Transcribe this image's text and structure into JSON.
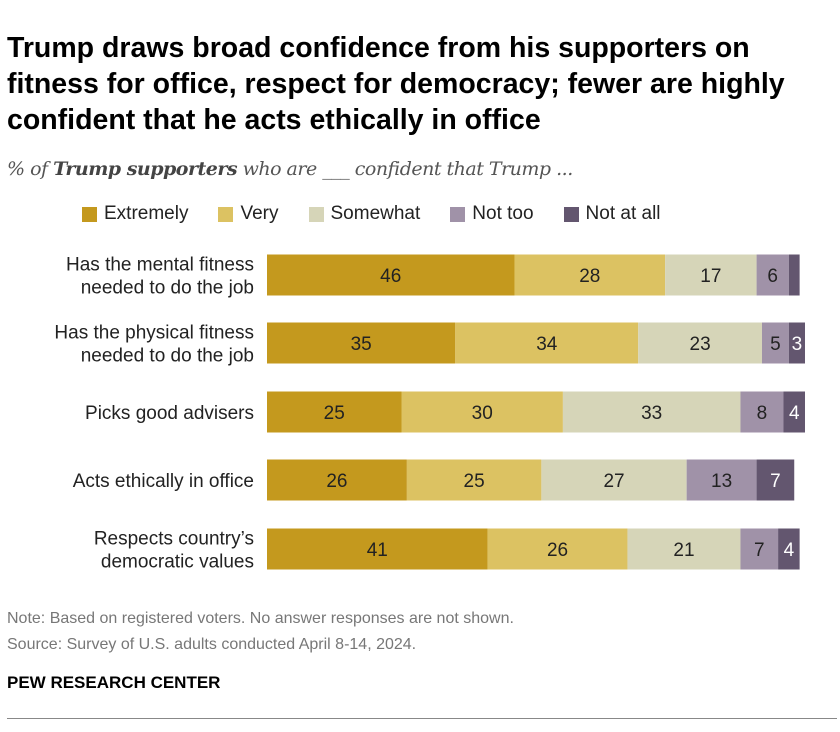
{
  "title": "Trump draws broad confidence from his supporters on fitness for office, respect for democracy; fewer are highly confident that he acts ethically in office",
  "subtitle": {
    "prefix": "% of ",
    "bold": "Trump supporters",
    "suffix": " who are ___ confident that Trump ..."
  },
  "note": "Note: Based on registered voters. No answer responses are not shown.",
  "source": "Source: Survey of U.S. adults conducted April 8-14, 2024.",
  "brand": "PEW RESEARCH CENTER",
  "chart_data": {
    "type": "bar",
    "orientation": "horizontal",
    "stacked": true,
    "categories": [
      "Has the mental fitness needed to do the job",
      "Has the physical fitness needed to do the job",
      "Picks good advisers",
      "Acts ethically in office",
      "Respects country’s democratic values"
    ],
    "category_lines": [
      [
        "Has the mental fitness",
        "needed to do the job"
      ],
      [
        "Has the physical fitness",
        "needed to do the job"
      ],
      [
        "Picks good advisers"
      ],
      [
        "Acts ethically in office"
      ],
      [
        "Respects country’s",
        "democratic values"
      ]
    ],
    "series": [
      {
        "name": "Extremely",
        "color": "#C4991E",
        "values": [
          46,
          35,
          25,
          26,
          41
        ]
      },
      {
        "name": "Very",
        "color": "#DCC262",
        "values": [
          28,
          34,
          30,
          25,
          26
        ]
      },
      {
        "name": "Somewhat",
        "color": "#D6D5B8",
        "values": [
          17,
          23,
          33,
          27,
          21
        ]
      },
      {
        "name": "Not too",
        "color": "#A092A8",
        "values": [
          6,
          5,
          8,
          13,
          7
        ]
      },
      {
        "name": "Not at all",
        "color": "#63566F",
        "values": [
          2,
          3,
          4,
          7,
          4
        ]
      }
    ],
    "labels": [
      [
        "46",
        "28",
        "17",
        "6",
        ""
      ],
      [
        "35",
        "34",
        "23",
        "5",
        "3"
      ],
      [
        "25",
        "30",
        "33",
        "8",
        "4"
      ],
      [
        "26",
        "25",
        "27",
        "13",
        "7"
      ],
      [
        "41",
        "26",
        "21",
        "7",
        "4"
      ]
    ],
    "legend_position": "top",
    "grid": false
  }
}
